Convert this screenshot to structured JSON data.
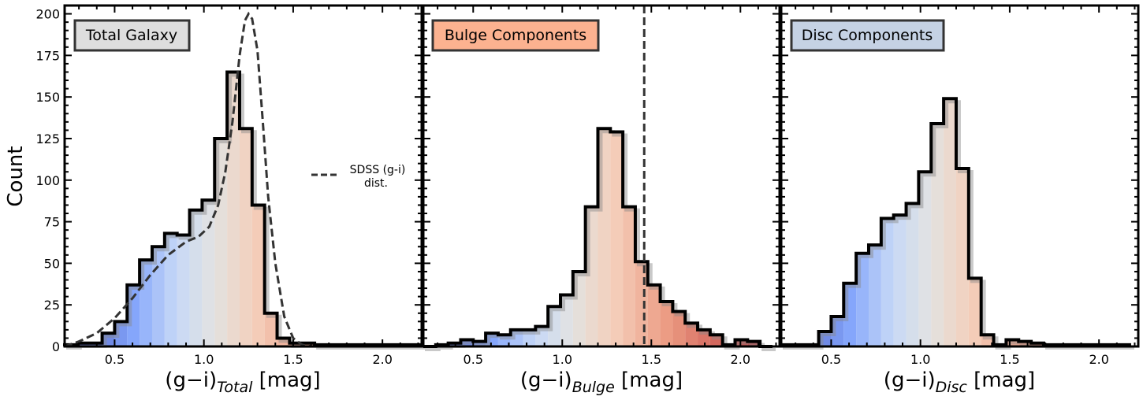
{
  "figure": {
    "ylabel": "Count",
    "unit": "[mag]"
  },
  "chart_data": [
    {
      "type": "bar",
      "panel": "total",
      "title": "Total Galaxy",
      "title_bg": "#dedede",
      "xlabel_main": "(g−i)",
      "xlabel_sub": "Total",
      "xlabel_unit": " [mag]",
      "ylabel": "Count",
      "xlim": [
        0.22,
        2.22
      ],
      "ylim": [
        0,
        205
      ],
      "xticks": [
        0.5,
        1.0,
        1.5,
        2.0
      ],
      "xtick_labels": [
        "0.5",
        "1.0",
        "1.5",
        "2.0"
      ],
      "yticks": [
        0,
        25,
        50,
        75,
        100,
        125,
        150,
        175,
        200
      ],
      "ytick_labels": [
        "0",
        "25",
        "50",
        "75",
        "100",
        "125",
        "150",
        "175",
        "200"
      ],
      "bin_edges": [
        0.22,
        0.29,
        0.36,
        0.43,
        0.5,
        0.57,
        0.64,
        0.71,
        0.78,
        0.85,
        0.92,
        0.99,
        1.06,
        1.13,
        1.2,
        1.27,
        1.34,
        1.41,
        1.48,
        1.55,
        1.62,
        1.69,
        1.76,
        1.83,
        1.9,
        1.97,
        2.04,
        2.11,
        2.22
      ],
      "counts": [
        1,
        2,
        2,
        8,
        15,
        37,
        52,
        60,
        68,
        67,
        82,
        88,
        125,
        165,
        131,
        85,
        20,
        5,
        2,
        2,
        1,
        1,
        1,
        1,
        1,
        1,
        1,
        1
      ],
      "overlay": {
        "label": "SDSS (g-i)",
        "label_line2": "dist.",
        "style": "dashed",
        "x": [
          0.22,
          0.3,
          0.4,
          0.5,
          0.6,
          0.7,
          0.8,
          0.9,
          0.97,
          1.03,
          1.08,
          1.12,
          1.16,
          1.2,
          1.23,
          1.25,
          1.27,
          1.3,
          1.33,
          1.36,
          1.4,
          1.45,
          1.5,
          1.55,
          1.6
        ],
        "y": [
          0,
          3,
          8,
          17,
          29,
          43,
          55,
          63,
          66,
          72,
          85,
          105,
          135,
          175,
          196,
          200,
          197,
          178,
          135,
          90,
          50,
          18,
          5,
          1,
          0
        ]
      }
    },
    {
      "type": "bar",
      "panel": "bulge",
      "title": "Bulge Components",
      "title_bg": "#fcb290",
      "xlabel_main": "(g−i)",
      "xlabel_sub": "Bulge",
      "xlabel_unit": " [mag]",
      "xlim": [
        0.22,
        2.22
      ],
      "ylim": [
        0,
        205
      ],
      "xticks": [
        0.5,
        1.0,
        1.5,
        2.0
      ],
      "xtick_labels": [
        "0.5",
        "1.0",
        "1.5",
        "2.0"
      ],
      "bin_edges": [
        0.22,
        0.29,
        0.36,
        0.43,
        0.5,
        0.57,
        0.64,
        0.71,
        0.78,
        0.85,
        0.92,
        0.99,
        1.06,
        1.13,
        1.2,
        1.27,
        1.34,
        1.41,
        1.48,
        1.55,
        1.62,
        1.69,
        1.76,
        1.83,
        1.9,
        1.97,
        2.04,
        2.11,
        2.18
      ],
      "counts": [
        0,
        1,
        2,
        4,
        3,
        8,
        7,
        10,
        10,
        12,
        24,
        31,
        45,
        84,
        131,
        129,
        84,
        51,
        37,
        27,
        21,
        14,
        10,
        7,
        1,
        4,
        3,
        0
      ],
      "vline": {
        "x": 1.46,
        "style": "dashed"
      }
    },
    {
      "type": "bar",
      "panel": "disc",
      "title": "Disc Components",
      "title_bg": "#c5d2e4",
      "xlabel_main": "(g−i)",
      "xlabel_sub": "Disc",
      "xlabel_unit": " [mag]",
      "xlim": [
        0.22,
        2.22
      ],
      "ylim": [
        0,
        205
      ],
      "xticks": [
        0.5,
        1.0,
        1.5,
        2.0
      ],
      "xtick_labels": [
        "0.5",
        "1.0",
        "1.5",
        "2.0"
      ],
      "bin_edges": [
        0.22,
        0.29,
        0.36,
        0.43,
        0.5,
        0.57,
        0.64,
        0.71,
        0.78,
        0.85,
        0.92,
        0.99,
        1.06,
        1.13,
        1.2,
        1.27,
        1.34,
        1.41,
        1.48,
        1.55,
        1.62,
        1.69,
        1.76,
        1.83,
        1.9,
        1.97,
        2.04,
        2.11,
        2.18
      ],
      "counts": [
        1,
        1,
        1,
        9,
        18,
        38,
        56,
        61,
        77,
        79,
        86,
        105,
        134,
        149,
        107,
        41,
        7,
        1,
        4,
        3,
        2,
        1,
        1,
        1,
        1,
        1,
        1,
        1
      ]
    }
  ]
}
